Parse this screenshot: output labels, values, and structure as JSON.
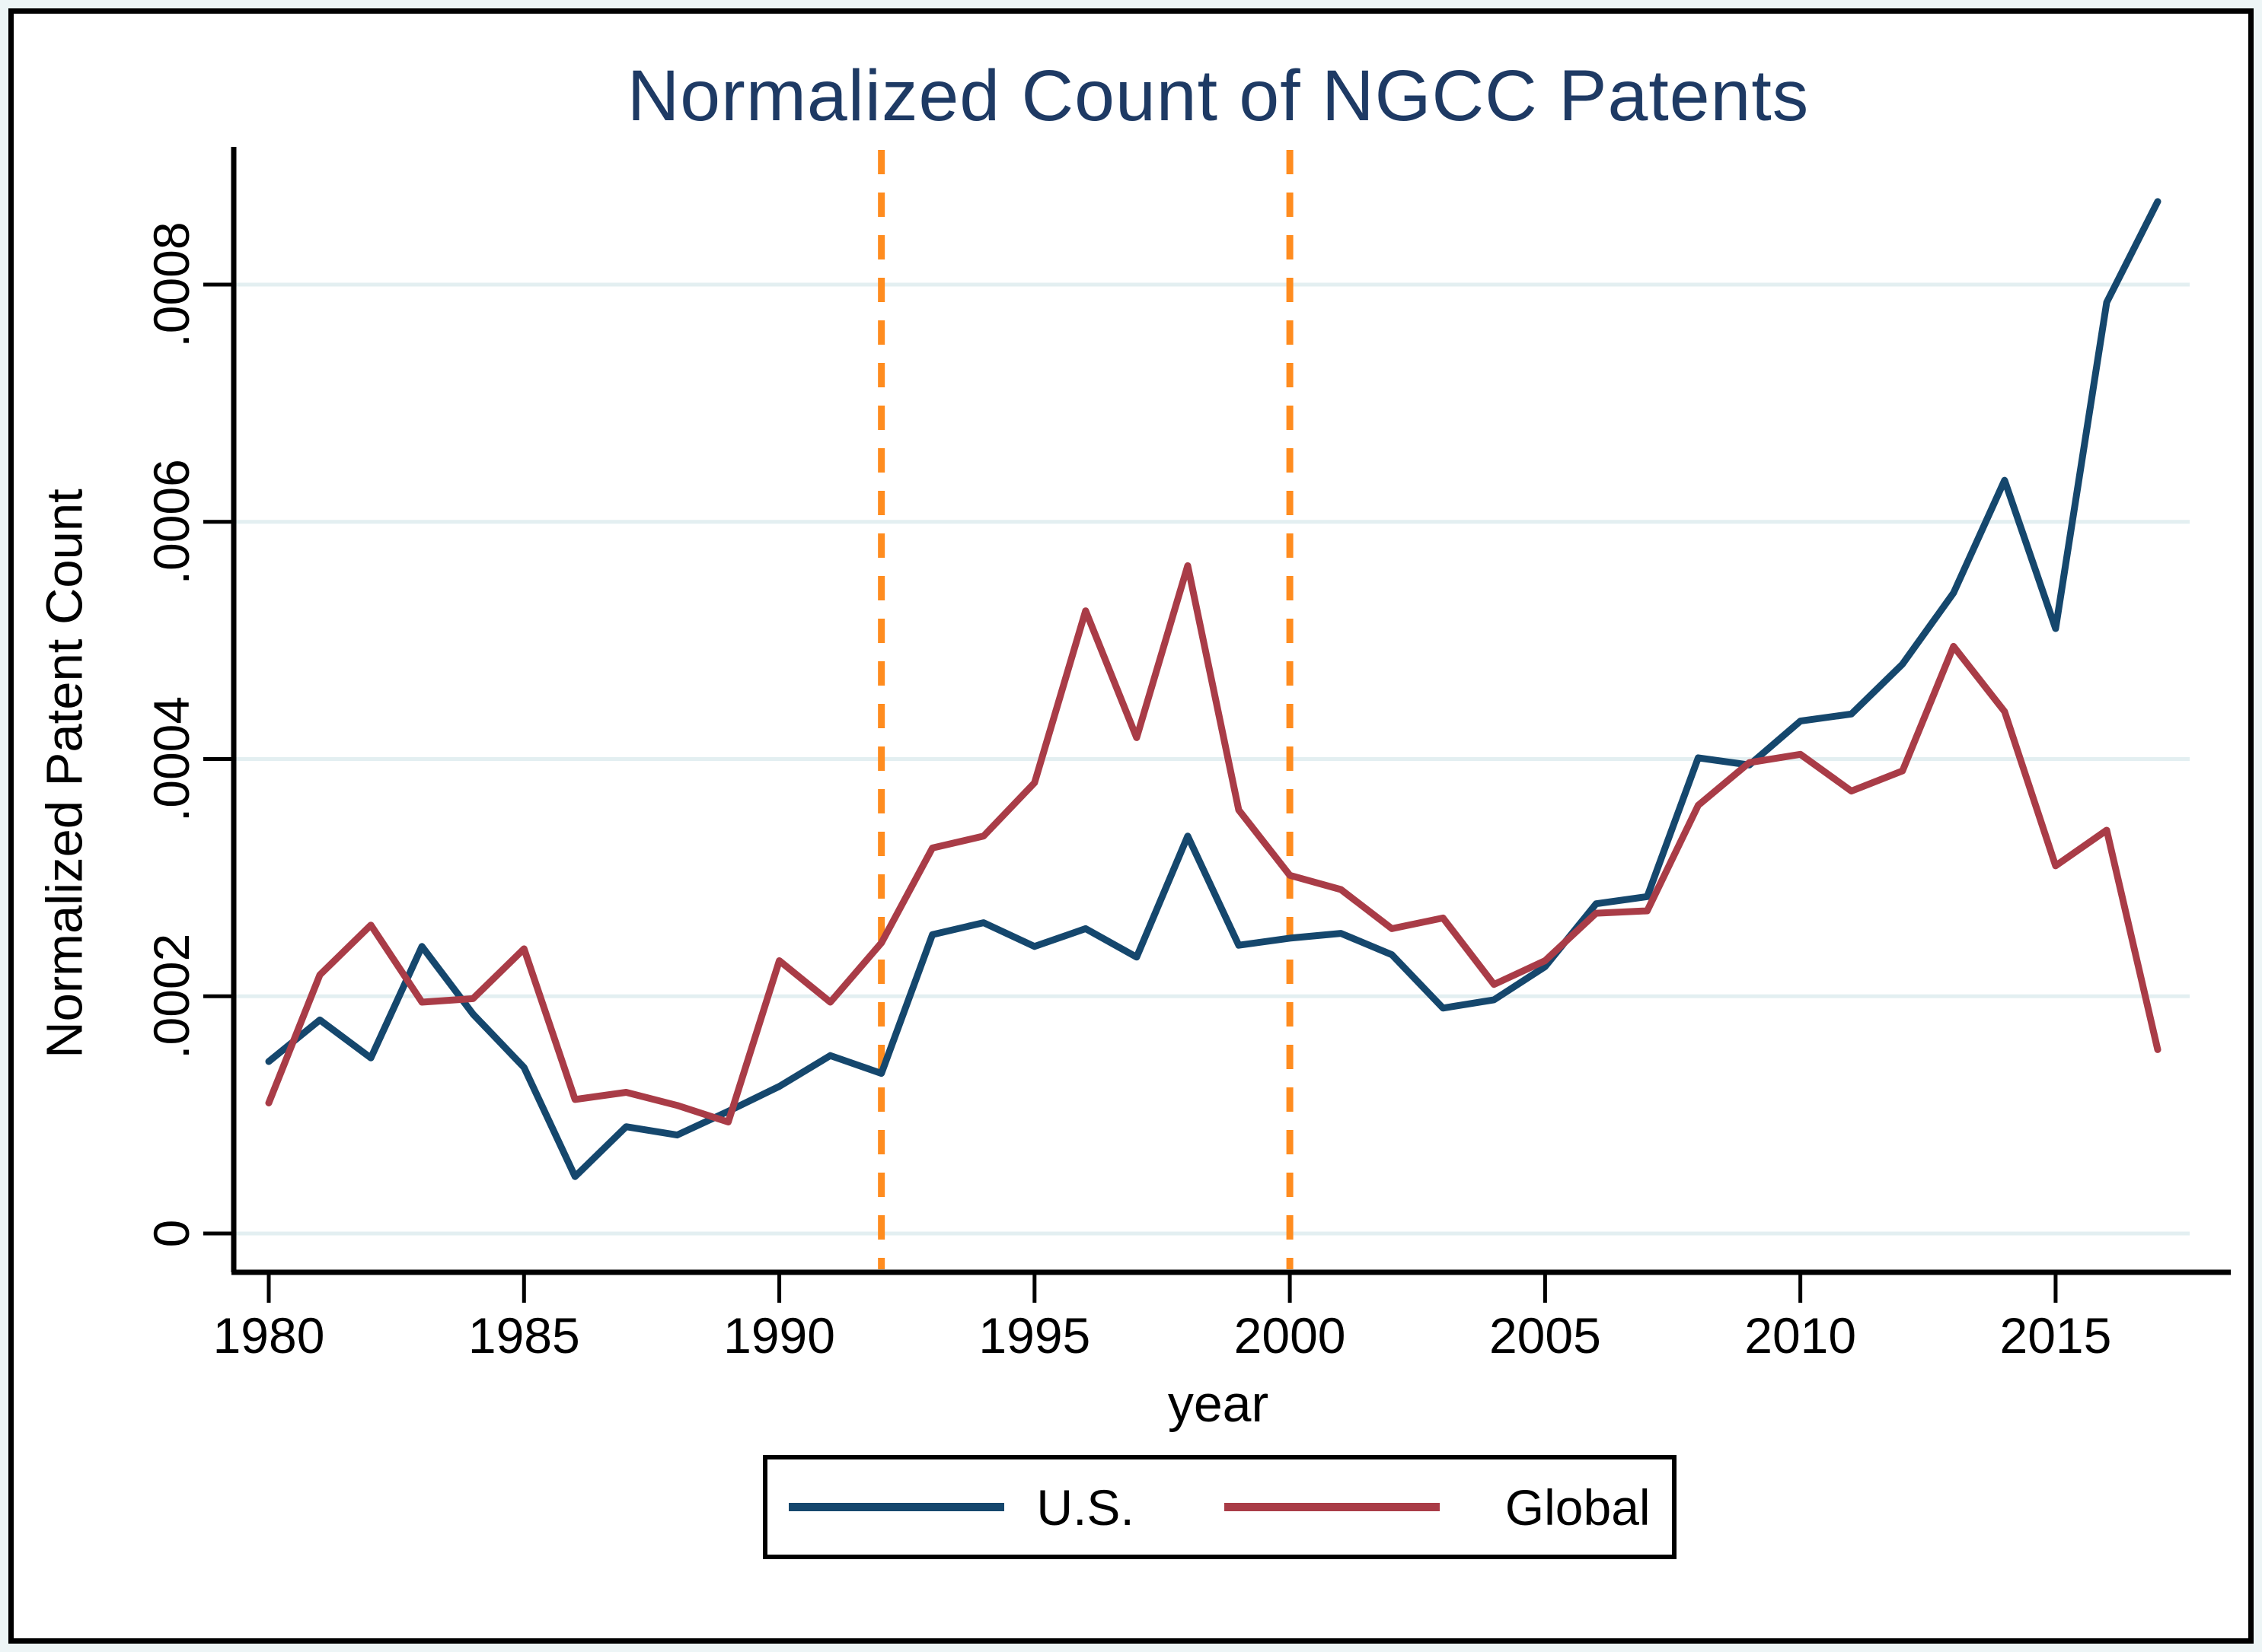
{
  "title": "Normalized Count of NGCC Patents",
  "chart_data": {
    "type": "line",
    "title": "Normalized Count of NGCC Patents",
    "xlabel": "year",
    "ylabel": "Normalized Patent Count",
    "x": [
      1980,
      1981,
      1982,
      1983,
      1984,
      1985,
      1986,
      1987,
      1988,
      1989,
      1990,
      1991,
      1992,
      1993,
      1994,
      1995,
      1996,
      1997,
      1998,
      1999,
      2000,
      2001,
      2002,
      2003,
      2004,
      2005,
      2006,
      2007,
      2008,
      2009,
      2010,
      2011,
      2012,
      2013,
      2014,
      2015,
      2016,
      2017
    ],
    "series": [
      {
        "name": "U.S.",
        "color": "#15476D",
        "values": [
          0.000145,
          0.00018,
          0.000148,
          0.000242,
          0.000185,
          0.00014,
          4.8e-05,
          9e-05,
          8.3e-05,
          0.000103,
          0.000124,
          0.00015,
          0.000135,
          0.000252,
          0.000262,
          0.000242,
          0.000257,
          0.000233,
          0.000335,
          0.000243,
          0.000249,
          0.000253,
          0.000235,
          0.00019,
          0.000197,
          0.000225,
          0.000278,
          0.000284,
          0.000401,
          0.000395,
          0.000432,
          0.000438,
          0.00048,
          0.00054,
          0.000635,
          0.00051,
          0.000785,
          0.00087
        ]
      },
      {
        "name": "Global",
        "color": "#A93C47",
        "values": [
          0.00011,
          0.000218,
          0.00026,
          0.000195,
          0.000198,
          0.00024,
          0.000113,
          0.000119,
          0.000108,
          9.4e-05,
          0.00023,
          0.000195,
          0.000245,
          0.000325,
          0.000335,
          0.00038,
          0.000525,
          0.000418,
          0.000563,
          0.000357,
          0.000302,
          0.00029,
          0.000257,
          0.000266,
          0.00021,
          0.00023,
          0.00027,
          0.000272,
          0.000361,
          0.000397,
          0.000404,
          0.000373,
          0.00039,
          0.000495,
          0.00044,
          0.00031,
          0.00034,
          0.000155
        ]
      }
    ],
    "xticks": [
      1980,
      1985,
      1990,
      1995,
      2000,
      2005,
      2010,
      2015
    ],
    "yticks": [
      0,
      0.0002,
      0.0004,
      0.0006,
      0.0008
    ],
    "ytick_labels": [
      "0",
      ".0002",
      ".0004",
      ".0006",
      ".0008"
    ],
    "ylim": [
      0,
      0.000916
    ],
    "xlim": [
      1979.3,
      2017.6
    ],
    "grid": true,
    "vlines": [
      {
        "x": 1992,
        "color": "#FF8C1F",
        "style": "dashed"
      },
      {
        "x": 2000,
        "color": "#FF8C1F",
        "style": "dashed"
      }
    ],
    "legend_position": "bottom",
    "legend_entries": [
      "U.S.",
      "Global"
    ]
  },
  "colors": {
    "us_line": "#15476D",
    "global_line": "#A93C47",
    "event_line": "#FF8C1F",
    "gridline": "#e3eff1",
    "title_text": "#1e3a64",
    "axis": "#000000",
    "plot_bg": "#ffffff",
    "outer_margin": "#edf5f6"
  }
}
